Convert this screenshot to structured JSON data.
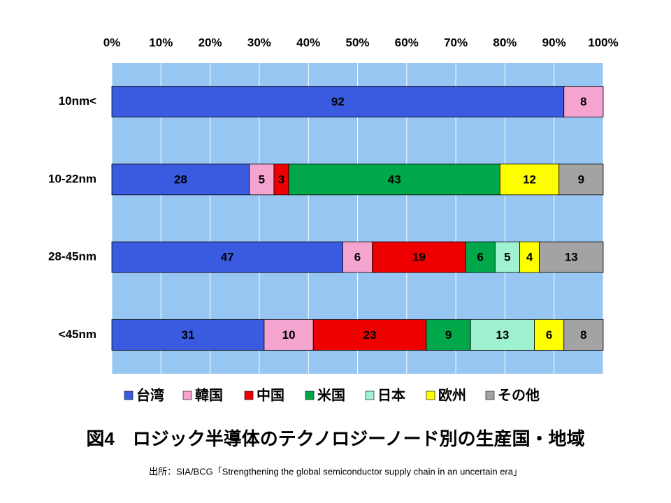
{
  "chart_data": {
    "type": "bar",
    "horizontal": true,
    "stacked": true,
    "title": "図4　ロジック半導体のテクノロジーノード別の生産国・地域",
    "source": "出所：SIA/BCG「Strengthening the global semiconductor supply chain in an uncertain era」",
    "categories": [
      "10nm<",
      "10-22nm",
      "28-45nm",
      "<45nm"
    ],
    "series": [
      {
        "name": "台湾",
        "color": "#3a5be0",
        "values": [
          92,
          28,
          47,
          31
        ]
      },
      {
        "name": "韓国",
        "color": "#f5a3cf",
        "values": [
          8,
          5,
          6,
          10
        ]
      },
      {
        "name": "中国",
        "color": "#ee0000",
        "values": [
          0,
          3,
          19,
          23
        ]
      },
      {
        "name": "米国",
        "color": "#00a84a",
        "values": [
          0,
          43,
          6,
          9
        ]
      },
      {
        "name": "日本",
        "color": "#9ff2cf",
        "values": [
          0,
          0,
          5,
          13
        ]
      },
      {
        "name": "欧州",
        "color": "#ffff00",
        "values": [
          0,
          12,
          4,
          6
        ]
      },
      {
        "name": "その他",
        "color": "#a3a3a3",
        "values": [
          0,
          9,
          13,
          8
        ]
      }
    ],
    "xlim": [
      0,
      100
    ],
    "xticks": [
      {
        "value": 0,
        "label": "0%"
      },
      {
        "value": 10,
        "label": "10%"
      },
      {
        "value": 20,
        "label": "20%"
      },
      {
        "value": 30,
        "label": "30%"
      },
      {
        "value": 40,
        "label": "40%"
      },
      {
        "value": 50,
        "label": "50%"
      },
      {
        "value": 60,
        "label": "60%"
      },
      {
        "value": 70,
        "label": "70%"
      },
      {
        "value": 80,
        "label": "80%"
      },
      {
        "value": 90,
        "label": "90%"
      },
      {
        "value": 100,
        "label": "100%"
      }
    ],
    "grid": true,
    "background": "#97c6f2",
    "legend": "bottom"
  }
}
